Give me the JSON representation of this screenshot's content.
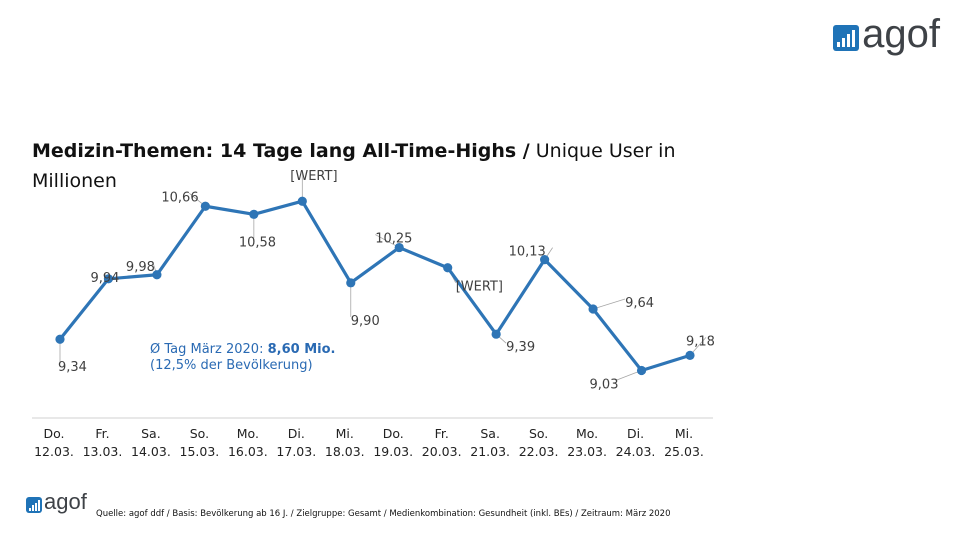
{
  "logo": {
    "text": "agof"
  },
  "title": {
    "bold": "Medizin-Themen: 14 Tage lang All-Time-Highs /",
    "normal": " Unique User in Millionen"
  },
  "annotation": {
    "prefix": "Ø Tag März 2020: ",
    "value": "8,60 Mio.",
    "line2": "(12,5% der Bevölkerung)"
  },
  "source": "Quelle: agof ddf / Basis: Bevölkerung ab 16 J. / Zielgruppe: Gesamt / Medienkombination: Gesundheit (inkl. BEs) / Zeitraum: März 2020",
  "colors": {
    "line": "#2e75b6",
    "accent": "#1f73b7",
    "annotation": "#2a6ab3"
  },
  "chart_data": {
    "type": "line",
    "categories": [
      [
        "Do.",
        "12.03."
      ],
      [
        "Fr.",
        "13.03."
      ],
      [
        "Sa.",
        "14.03."
      ],
      [
        "So.",
        "15.03."
      ],
      [
        "Mo.",
        "16.03."
      ],
      [
        "Di.",
        "17.03."
      ],
      [
        "Mi.",
        "18.03."
      ],
      [
        "Do.",
        "19.03."
      ],
      [
        "Fr.",
        "20.03."
      ],
      [
        "Sa.",
        "21.03."
      ],
      [
        "So.",
        "22.03."
      ],
      [
        "Mo.",
        "23.03."
      ],
      [
        "Di.",
        "24.03."
      ],
      [
        "Mi.",
        "25.03."
      ]
    ],
    "values": [
      9.34,
      9.94,
      9.98,
      10.66,
      10.58,
      10.71,
      9.9,
      10.25,
      10.05,
      9.39,
      10.13,
      9.64,
      9.03,
      9.18
    ],
    "labels": [
      "9,34",
      "9,94",
      "9,98",
      "10,66",
      "10,58",
      "[WERT]",
      "9,90",
      "10,25",
      "[WERT]",
      "9,39",
      "10,13",
      "9,64",
      "9,03",
      "9,18"
    ],
    "ylim": [
      9.0,
      11.0
    ],
    "grid": false
  }
}
